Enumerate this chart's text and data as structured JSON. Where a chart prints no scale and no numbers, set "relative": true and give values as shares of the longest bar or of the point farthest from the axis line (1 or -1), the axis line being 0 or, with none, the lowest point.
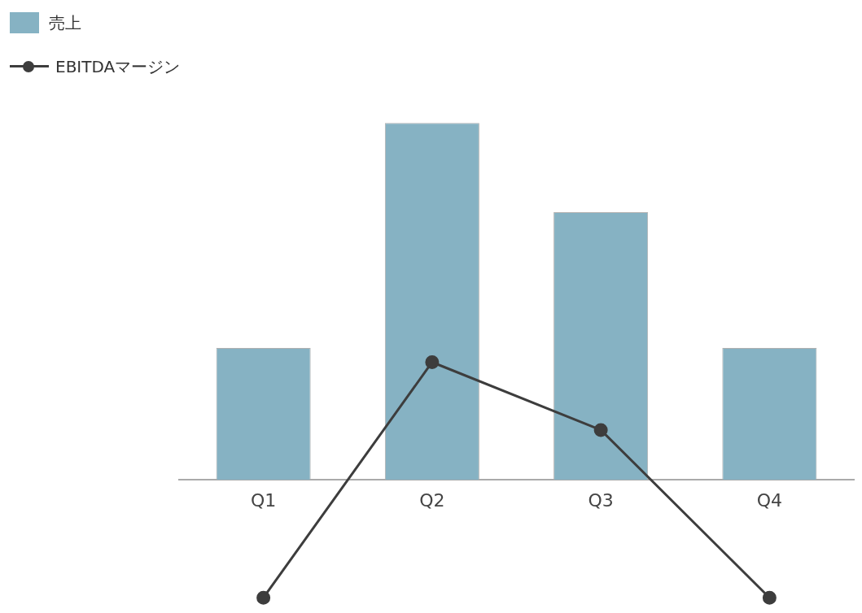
{
  "chart_data": {
    "type": "bar",
    "relative": true,
    "categories": [
      "Q1",
      "Q2",
      "Q3",
      "Q4"
    ],
    "series": [
      {
        "name": "売上",
        "color": "#86b2c3",
        "values": [
          0.37,
          1,
          0.75,
          0.37
        ]
      },
      {
        "name": "EBITDAマージン",
        "type": "line",
        "color": "#3d3d3d",
        "marker": "circle",
        "values": [
          -0.33,
          0.33,
          0.14,
          -0.33
        ]
      }
    ],
    "legend": "top left",
    "grid": false,
    "tick_labels": "x"
  }
}
